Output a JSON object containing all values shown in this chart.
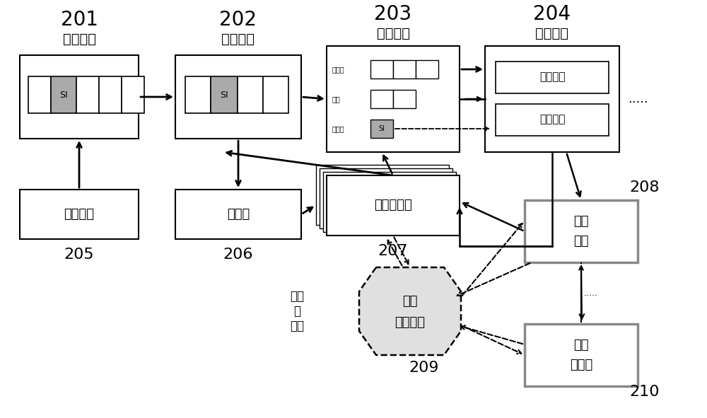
{
  "bg_color": "#ffffff",
  "si_color": "#aaaaaa",
  "gray_border": "#888888",
  "stage_nums": [
    "201",
    "202",
    "203",
    "204"
  ],
  "stage_names": [
    "取指阶段",
    "译码阶段",
    "发射阶段",
    "执行阶段"
  ],
  "box205": "指令缓存",
  "box206": "重命名",
  "box207": "寄存器文件",
  "box208a": "一级",
  "box208b": "缓存",
  "box209a": "字符",
  "box209b": "加速装置",
  "box210a": "存储",
  "box210b": "控制器",
  "nm_label": "非访存",
  "mem_label": "访存",
  "str_label": "字符串",
  "fp_label": "浮点部件",
  "int_label": "整型部件",
  "cmp_label": "对比\n与\n拷贝",
  "num205": "205",
  "num206": "206",
  "num207": "207",
  "num208": "208",
  "num209": "209",
  "num210": "210"
}
